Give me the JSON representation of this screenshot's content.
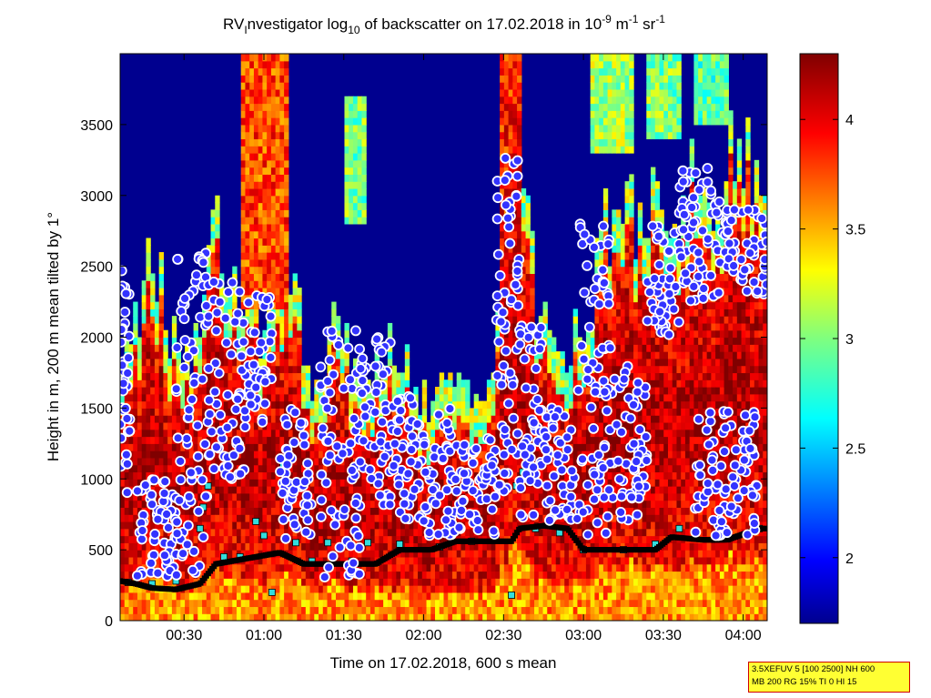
{
  "chart_data": {
    "type": "heatmap",
    "title": {
      "prefix": "RV",
      "sub_i": "I",
      "text1": "nvestigator log",
      "sub_10": "10",
      "text2": " of backscatter on 17.02.2018 in 10",
      "sup1": "-9",
      "text3": " m",
      "sup2": "-1",
      "text4": " sr",
      "sup3": "-1"
    },
    "xlabel": "Time on 17.02.2018, 600 s mean",
    "ylabel": "Height in m, 200 m mean tilted by 1°",
    "xlim_hours": [
      0.1,
      4.15
    ],
    "ylim": [
      0,
      4000
    ],
    "x_ticks": [
      {
        "value": 0.5,
        "label": "00:30"
      },
      {
        "value": 1.0,
        "label": "01:00"
      },
      {
        "value": 1.5,
        "label": "01:30"
      },
      {
        "value": 2.0,
        "label": "02:00"
      },
      {
        "value": 2.5,
        "label": "02:30"
      },
      {
        "value": 3.0,
        "label": "03:00"
      },
      {
        "value": 3.5,
        "label": "03:30"
      },
      {
        "value": 4.0,
        "label": "04:00"
      }
    ],
    "y_ticks": [
      {
        "value": 0,
        "label": "0"
      },
      {
        "value": 500,
        "label": "500"
      },
      {
        "value": 1000,
        "label": "1000"
      },
      {
        "value": 1500,
        "label": "1500"
      },
      {
        "value": 2000,
        "label": "2000"
      },
      {
        "value": 2500,
        "label": "2500"
      },
      {
        "value": 3000,
        "label": "3000"
      },
      {
        "value": 3500,
        "label": "3500"
      }
    ],
    "colorbar": {
      "range": [
        1.7,
        4.3
      ],
      "ticks": [
        {
          "value": 2,
          "label": "2"
        },
        {
          "value": 2.5,
          "label": "2.5"
        },
        {
          "value": 3,
          "label": "3"
        },
        {
          "value": 3.5,
          "label": "3.5"
        },
        {
          "value": 4,
          "label": "4"
        }
      ],
      "colormap": "jet"
    },
    "colors": {
      "low": "#00008f",
      "mid": "#7fff7f",
      "high": "#800000",
      "cloud_marker_fill": "#3333ff",
      "cloud_marker_ring": "#ffffff",
      "mlh_fill": "#000000",
      "aerosol_marker": "#33dddd"
    },
    "background_value": 1.75,
    "boundary_layer_top": [
      [
        0.1,
        1300
      ],
      [
        0.3,
        2300
      ],
      [
        0.5,
        1400
      ],
      [
        0.7,
        2400
      ],
      [
        0.85,
        2100
      ],
      [
        1.0,
        1700
      ],
      [
        1.15,
        2300
      ],
      [
        1.3,
        1200
      ],
      [
        1.45,
        1900
      ],
      [
        1.6,
        1300
      ],
      [
        1.8,
        1700
      ],
      [
        2.0,
        1200
      ],
      [
        2.2,
        1400
      ],
      [
        2.4,
        1100
      ],
      [
        2.55,
        3600
      ],
      [
        2.65,
        2400
      ],
      [
        2.8,
        1500
      ],
      [
        3.0,
        1700
      ],
      [
        3.15,
        2500
      ],
      [
        3.3,
        2600
      ],
      [
        3.45,
        2700
      ],
      [
        3.6,
        2600
      ],
      [
        3.8,
        2800
      ],
      [
        4.0,
        2900
      ],
      [
        4.15,
        3000
      ]
    ],
    "upper_plumes": [
      {
        "x_range": [
          0.85,
          1.15
        ],
        "y_range": [
          2200,
          4000
        ],
        "value": 3.8
      },
      {
        "x_range": [
          1.5,
          1.65
        ],
        "y_range": [
          2800,
          3700
        ],
        "value": 3.0
      },
      {
        "x_range": [
          2.48,
          2.62
        ],
        "y_range": [
          2500,
          4000
        ],
        "value": 3.9
      },
      {
        "x_range": [
          3.05,
          3.3
        ],
        "y_range": [
          3300,
          4000
        ],
        "value": 3.1
      },
      {
        "x_range": [
          3.4,
          3.6
        ],
        "y_range": [
          3400,
          4000
        ],
        "value": 3.0
      },
      {
        "x_range": [
          3.7,
          3.9
        ],
        "y_range": [
          3500,
          4000
        ],
        "value": 2.9
      }
    ],
    "cloud_tracks": [
      {
        "x_range": [
          0.1,
          0.16
        ],
        "y_range": [
          900,
          2500
        ]
      },
      {
        "x_range": [
          0.2,
          0.45
        ],
        "y_range": [
          300,
          1000
        ]
      },
      {
        "x_range": [
          0.45,
          0.65
        ],
        "y_range": [
          300,
          2600
        ]
      },
      {
        "x_range": [
          0.65,
          0.9
        ],
        "y_range": [
          1000,
          2400
        ]
      },
      {
        "x_range": [
          0.9,
          1.05
        ],
        "y_range": [
          1400,
          2300
        ]
      },
      {
        "x_range": [
          1.1,
          1.3
        ],
        "y_range": [
          500,
          1500
        ]
      },
      {
        "x_range": [
          1.35,
          1.6
        ],
        "y_range": [
          300,
          2100
        ]
      },
      {
        "x_range": [
          1.6,
          1.8
        ],
        "y_range": [
          800,
          2000
        ]
      },
      {
        "x_range": [
          1.8,
          2.0
        ],
        "y_range": [
          700,
          1600
        ]
      },
      {
        "x_range": [
          2.0,
          2.2
        ],
        "y_range": [
          600,
          1500
        ]
      },
      {
        "x_range": [
          2.2,
          2.45
        ],
        "y_range": [
          600,
          1300
        ]
      },
      {
        "x_range": [
          2.45,
          2.6
        ],
        "y_range": [
          900,
          3300
        ]
      },
      {
        "x_range": [
          2.6,
          2.75
        ],
        "y_range": [
          700,
          2100
        ]
      },
      {
        "x_range": [
          2.75,
          2.95
        ],
        "y_range": [
          700,
          1500
        ]
      },
      {
        "x_range": [
          2.95,
          3.2
        ],
        "y_range": [
          600,
          2800
        ]
      },
      {
        "x_range": [
          3.2,
          3.4
        ],
        "y_range": [
          700,
          1800
        ]
      },
      {
        "x_range": [
          3.4,
          3.6
        ],
        "y_range": [
          2000,
          2800
        ]
      },
      {
        "x_range": [
          3.6,
          3.9
        ],
        "y_range": [
          2200,
          3200
        ]
      },
      {
        "x_range": [
          3.7,
          4.1
        ],
        "y_range": [
          600,
          1500
        ]
      },
      {
        "x_range": [
          3.9,
          4.15
        ],
        "y_range": [
          2300,
          2900
        ]
      }
    ],
    "mixing_layer_height": [
      [
        0.1,
        280
      ],
      [
        0.2,
        260
      ],
      [
        0.3,
        230
      ],
      [
        0.45,
        220
      ],
      [
        0.6,
        260
      ],
      [
        0.7,
        400
      ],
      [
        0.85,
        430
      ],
      [
        1.0,
        460
      ],
      [
        1.1,
        480
      ],
      [
        1.25,
        400
      ],
      [
        1.4,
        400
      ],
      [
        1.55,
        400
      ],
      [
        1.7,
        400
      ],
      [
        1.85,
        500
      ],
      [
        2.05,
        500
      ],
      [
        2.2,
        560
      ],
      [
        2.4,
        560
      ],
      [
        2.55,
        560
      ],
      [
        2.6,
        650
      ],
      [
        2.75,
        670
      ],
      [
        2.9,
        650
      ],
      [
        3.0,
        500
      ],
      [
        3.15,
        500
      ],
      [
        3.3,
        500
      ],
      [
        3.45,
        500
      ],
      [
        3.55,
        590
      ],
      [
        3.75,
        570
      ],
      [
        3.9,
        570
      ],
      [
        4.1,
        650
      ]
    ],
    "aerosol_layers": [
      [
        0.15,
        270
      ],
      [
        0.3,
        260
      ],
      [
        0.45,
        280
      ],
      [
        0.55,
        500
      ],
      [
        0.6,
        650
      ],
      [
        0.62,
        800
      ],
      [
        0.65,
        950
      ],
      [
        0.75,
        450
      ],
      [
        0.85,
        450
      ],
      [
        0.95,
        700
      ],
      [
        1.0,
        600
      ],
      [
        1.05,
        200
      ],
      [
        1.12,
        1100
      ],
      [
        1.15,
        1200
      ],
      [
        1.2,
        550
      ],
      [
        1.3,
        420
      ],
      [
        1.4,
        550
      ],
      [
        1.55,
        420
      ],
      [
        1.65,
        550
      ],
      [
        1.85,
        540
      ],
      [
        2.1,
        520
      ],
      [
        2.3,
        560
      ],
      [
        2.45,
        590
      ],
      [
        2.55,
        180
      ],
      [
        2.58,
        950
      ],
      [
        2.62,
        1050
      ],
      [
        2.65,
        1100
      ],
      [
        2.7,
        650
      ],
      [
        2.85,
        620
      ],
      [
        3.0,
        500
      ],
      [
        3.25,
        500
      ],
      [
        3.45,
        540
      ],
      [
        3.6,
        650
      ],
      [
        3.85,
        600
      ],
      [
        4.1,
        650
      ]
    ]
  },
  "info_box": {
    "line1": "3.5XEFUV 5 [100 2500] NH 600",
    "line2": "MB 200 RG 15% TI 0 HI 15"
  }
}
